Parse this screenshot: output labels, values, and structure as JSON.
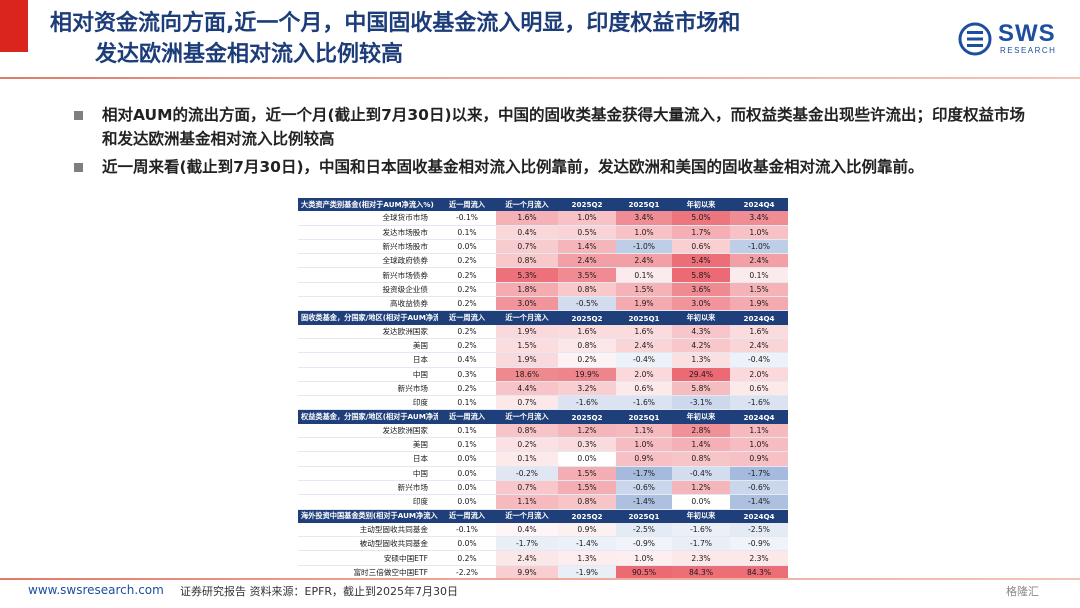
{
  "title": {
    "line1": "相对资金流向方面,近一个月，中国固收基金流入明显，印度权益市场和",
    "line2": "发达欧洲基金相对流入比例较高"
  },
  "logo": {
    "name": "SWS",
    "sub": "RESEARCH",
    "color": "#1d4fa0"
  },
  "bullets": [
    "相对AUM的流出方面，近一个月(截止到7月30日)以来，中国的固收类基金获得大量流入，而权益类基金出现些许流出；印度权益市场和发达欧洲基金相对流入比例较高",
    "近一周来看(截止到7月30日)，中国和日本固收基金相对流入比例靠前，发达欧洲和美国的固收基金相对流入比例靠前。"
  ],
  "chart_data": {
    "type": "table",
    "columns": [
      "近一周流入",
      "近一个月流入",
      "2025Q2",
      "2025Q1",
      "年初以来",
      "2024Q4"
    ],
    "sections": [
      {
        "header": "大类资产类别基金(相对于AUM净流入%)",
        "rows": [
          {
            "label": "全球货币市场",
            "values": [
              "-0.1%",
              "1.6%",
              "1.0%",
              "3.4%",
              "5.0%",
              "3.4%"
            ]
          },
          {
            "label": "发达市场股市",
            "values": [
              "0.1%",
              "0.4%",
              "0.5%",
              "1.0%",
              "1.7%",
              "1.0%"
            ]
          },
          {
            "label": "新兴市场股市",
            "values": [
              "0.0%",
              "0.7%",
              "1.4%",
              "-1.0%",
              "0.6%",
              "-1.0%"
            ]
          },
          {
            "label": "全球政府债券",
            "values": [
              "0.2%",
              "0.8%",
              "2.4%",
              "2.4%",
              "5.4%",
              "2.4%"
            ]
          },
          {
            "label": "新兴市场债券",
            "values": [
              "0.2%",
              "5.3%",
              "3.5%",
              "0.1%",
              "5.8%",
              "0.1%"
            ]
          },
          {
            "label": "投资级企业债",
            "values": [
              "0.2%",
              "1.8%",
              "0.8%",
              "1.5%",
              "3.6%",
              "1.5%"
            ]
          },
          {
            "label": "高收益债券",
            "values": [
              "0.2%",
              "3.0%",
              "-0.5%",
              "1.9%",
              "3.0%",
              "1.9%"
            ]
          }
        ]
      },
      {
        "header": "固收类基金，分国家/地区(相对于AUM净流入%)",
        "rows": [
          {
            "label": "发达欧洲国家",
            "values": [
              "0.2%",
              "1.9%",
              "1.6%",
              "1.6%",
              "4.3%",
              "1.6%"
            ]
          },
          {
            "label": "美国",
            "values": [
              "0.2%",
              "1.5%",
              "0.8%",
              "2.4%",
              "4.2%",
              "2.4%"
            ]
          },
          {
            "label": "日本",
            "values": [
              "0.4%",
              "1.9%",
              "0.2%",
              "-0.4%",
              "1.3%",
              "-0.4%"
            ]
          },
          {
            "label": "中国",
            "values": [
              "0.3%",
              "18.6%",
              "19.9%",
              "2.0%",
              "29.4%",
              "2.0%"
            ]
          },
          {
            "label": "新兴市场",
            "values": [
              "0.2%",
              "4.4%",
              "3.2%",
              "0.6%",
              "5.8%",
              "0.6%"
            ]
          },
          {
            "label": "印度",
            "values": [
              "0.1%",
              "0.7%",
              "-1.6%",
              "-1.6%",
              "-3.1%",
              "-1.6%"
            ]
          }
        ]
      },
      {
        "header": "权益类基金，分国家/地区(相对于AUM净流入%)",
        "rows": [
          {
            "label": "发达欧洲国家",
            "values": [
              "0.1%",
              "0.8%",
              "1.2%",
              "1.1%",
              "2.8%",
              "1.1%"
            ]
          },
          {
            "label": "美国",
            "values": [
              "0.1%",
              "0.2%",
              "0.3%",
              "1.0%",
              "1.4%",
              "1.0%"
            ]
          },
          {
            "label": "日本",
            "values": [
              "0.0%",
              "0.1%",
              "0.0%",
              "0.9%",
              "0.8%",
              "0.9%"
            ]
          },
          {
            "label": "中国",
            "values": [
              "0.0%",
              "-0.2%",
              "1.5%",
              "-1.7%",
              "-0.4%",
              "-1.7%"
            ]
          },
          {
            "label": "新兴市场",
            "values": [
              "0.0%",
              "0.7%",
              "1.5%",
              "-0.6%",
              "1.2%",
              "-0.6%"
            ]
          },
          {
            "label": "印度",
            "values": [
              "0.0%",
              "1.1%",
              "0.8%",
              "-1.4%",
              "0.0%",
              "-1.4%"
            ]
          }
        ]
      },
      {
        "header": "海外投资中国基金类别(相对于AUM净流入%)",
        "rows": [
          {
            "label": "主动型固收共同基金",
            "values": [
              "-0.1%",
              "0.4%",
              "0.9%",
              "-2.5%",
              "-1.6%",
              "-2.5%"
            ]
          },
          {
            "label": "被动型固收共同基金",
            "values": [
              "0.0%",
              "-1.7%",
              "-1.4%",
              "-0.9%",
              "-1.7%",
              "-0.9%"
            ]
          },
          {
            "label": "安硕中国ETF",
            "values": [
              "0.2%",
              "2.4%",
              "1.3%",
              "1.0%",
              "2.3%",
              "2.3%"
            ]
          },
          {
            "label": "富时三倍做空中国ETF",
            "values": [
              "-2.2%",
              "9.9%",
              "-1.9%",
              "90.5%",
              "84.3%",
              "84.3%"
            ]
          }
        ]
      }
    ],
    "heat_colors": {
      "positive": "#e8505b",
      "negative": "#4a73bb",
      "neutral": "#ffffff"
    }
  },
  "footer": {
    "site": "www.swsresearch.com",
    "source": "证券研究报告  资料来源：EPFR，截止到2025年7月30日",
    "watermark": "格隆汇"
  }
}
